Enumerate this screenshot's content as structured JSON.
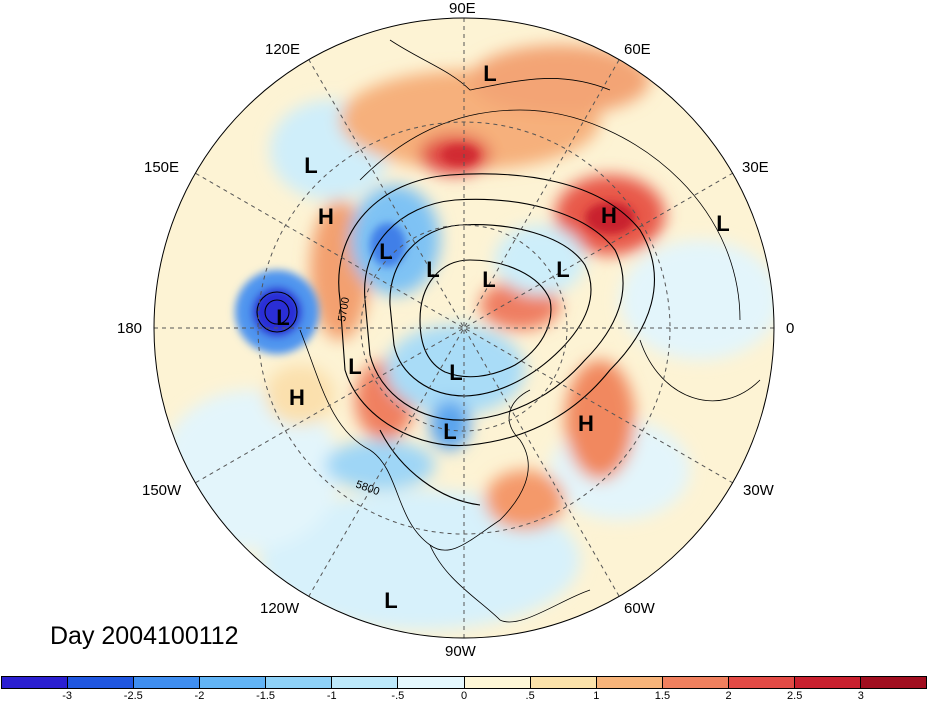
{
  "title": "Day 2004100112",
  "longitude_labels": {
    "top": "90E",
    "top_right": "60E",
    "right_upper": "30E",
    "right": "0",
    "right_lower": "30W",
    "bottom_right": "60W",
    "bottom": "90W",
    "bottom_left": "120W",
    "left_lower": "150W",
    "left": "180",
    "left_upper": "150E",
    "top_left": "120E"
  },
  "pressure_centers": [
    {
      "type": "L"
    },
    {
      "type": "L"
    },
    {
      "type": "H"
    },
    {
      "type": "L"
    },
    {
      "type": "L"
    },
    {
      "type": "L"
    },
    {
      "type": "L"
    },
    {
      "type": "H"
    },
    {
      "type": "L"
    },
    {
      "type": "L"
    },
    {
      "type": "L"
    },
    {
      "type": "H"
    },
    {
      "type": "L"
    },
    {
      "type": "L"
    },
    {
      "type": "H"
    },
    {
      "type": "L"
    }
  ],
  "contour_labels": [
    "5700",
    "5800"
  ],
  "colorbar": {
    "ticks": [
      "-3",
      "-2.5",
      "-2",
      "-1.5",
      "-1",
      "-.5",
      "0",
      ".5",
      "1",
      "1.5",
      "2",
      "2.5",
      "3"
    ],
    "colors": [
      "#2b1fd1",
      "#1f56e0",
      "#3f8ef0",
      "#62b4f5",
      "#8fd2f8",
      "#bde9fb",
      "#e4f7fd",
      "#fdf6d6",
      "#fbe2aa",
      "#f7b47a",
      "#f0805e",
      "#e34a45",
      "#c9202e",
      "#a10e1f"
    ]
  }
}
